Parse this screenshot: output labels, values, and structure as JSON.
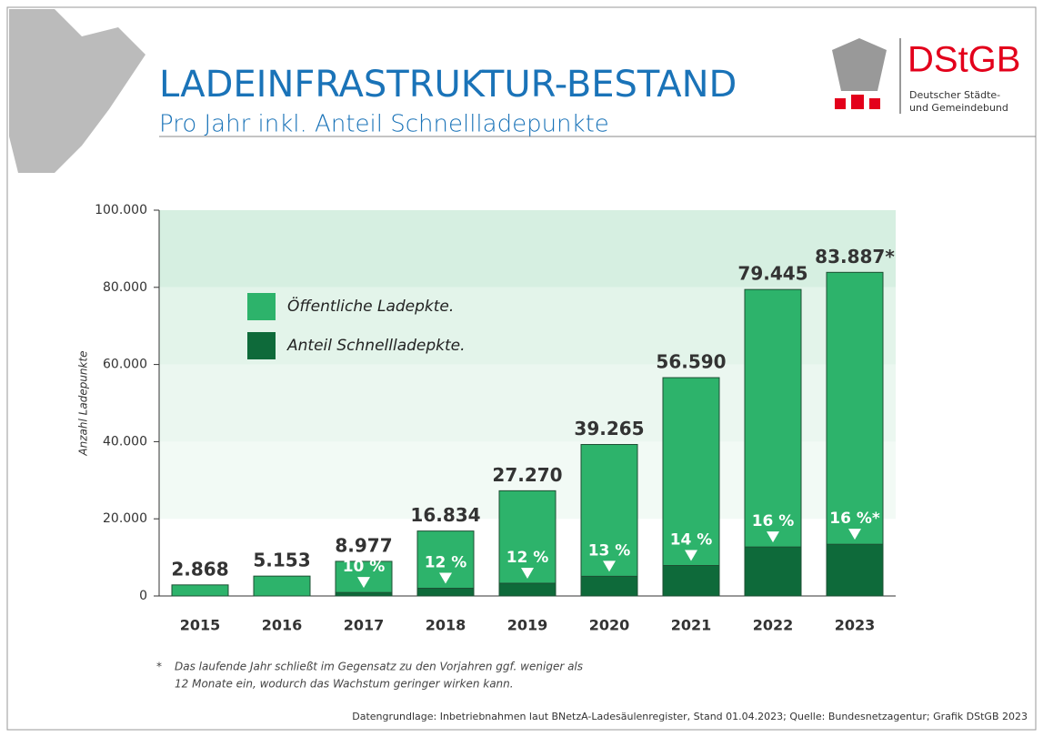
{
  "header": {
    "title": "LADEINFRASTRUKTUR-BESTAND",
    "subtitle": "Pro Jahr inkl. Anteil Schnellladepunkte",
    "logo": {
      "name": "DStGB",
      "line1": "Deutscher Städte-",
      "line2": "und Gemeindebund"
    }
  },
  "chart_data": {
    "type": "bar",
    "y_label": "Anzahl Ladepunkte",
    "categories": [
      "2015",
      "2016",
      "2017",
      "2018",
      "2019",
      "2020",
      "2021",
      "2022",
      "2023"
    ],
    "series": [
      {
        "name": "Öffentliche Ladepkte.",
        "color": "#2db36b",
        "values": [
          2868,
          5153,
          8977,
          16834,
          27270,
          39265,
          56590,
          79445,
          83887
        ],
        "value_labels": [
          "2.868",
          "5.153",
          "8.977",
          "16.834",
          "27.270",
          "39.265",
          "56.590",
          "79.445",
          "83.887*"
        ]
      },
      {
        "name": "Anteil Schnellladepkte.",
        "color": "#0e6a3a",
        "values": [
          null,
          null,
          900,
          2000,
          3300,
          5100,
          7900,
          12700,
          13400
        ]
      }
    ],
    "fast_share": {
      "values": [
        null,
        null,
        10,
        12,
        12,
        13,
        14,
        16,
        16
      ],
      "value_labels": [
        null,
        null,
        "10 %",
        "12 %",
        "12 %",
        "13 %",
        "14 %",
        "16 %",
        "16 %*"
      ]
    },
    "ylim": [
      0,
      100000
    ],
    "yticks": [
      0,
      {
        "value": 20000,
        "label": "20.000"
      },
      {
        "value": 40000,
        "label": "40.000"
      },
      {
        "value": 60000,
        "label": "60.000"
      },
      {
        "value": 80000,
        "label": "80.000"
      },
      {
        "value": 100000,
        "label": "100.000"
      }
    ]
  },
  "footnote": {
    "mark": "*",
    "line1": "Das laufende Jahr schließt im Gegensatz zu den Vorjahren ggf. weniger als",
    "line2": "12 Monate ein, wodurch das Wachstum geringer wirken kann."
  },
  "source": "Datengrundlage: Inbetriebnahmen laut BNetzA-Ladesäulenregister, Stand 01.04.2023; Quelle: Bundesnetzagentur; Grafik DStGB 2023"
}
